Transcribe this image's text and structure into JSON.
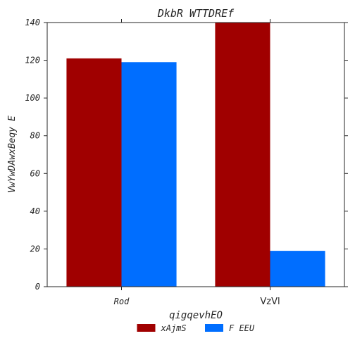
{
  "chart_data": {
    "type": "bar",
    "title": "DkbR WTTDREf",
    "xlabel": "qigqevhEO",
    "ylabel": "VwYwDAwxBeqy E",
    "categories": [
      "Rod",
      "VzVl"
    ],
    "category_label_styles": [
      "italic-mono",
      "sans"
    ],
    "ylim": [
      0,
      140
    ],
    "yticks": [
      0,
      20,
      40,
      60,
      80,
      100,
      120,
      140
    ],
    "grid": false,
    "legend_position": "bottom-center",
    "series": [
      {
        "name": "xAjmS",
        "values": [
          121,
          140
        ],
        "color": "#a00000"
      },
      {
        "name": "F EEU",
        "values": [
          119,
          19
        ],
        "color": "#006eff"
      }
    ]
  }
}
